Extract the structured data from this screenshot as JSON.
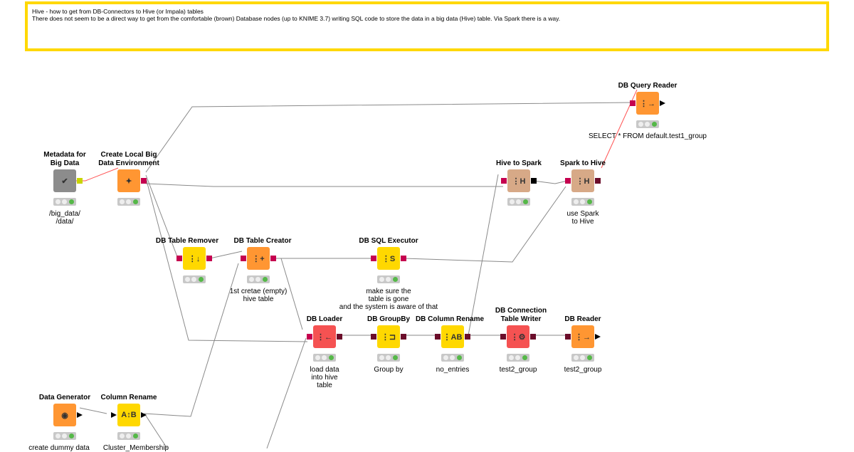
{
  "annotation": {
    "title": "Hive - how to get from DB-Connectors to Hive (or Impala) tables",
    "text": "There does not seem to be a direct way to get from the comfortable (brown) Database nodes (up to KNIME 3.7) writing SQL code to store the data in a big data (Hive) table. Via Spark there is a way."
  },
  "colors": {
    "annotation_border": "#ffd800",
    "orange": "#ff9632",
    "yellow": "#ffd800",
    "red": "#f55252",
    "tan": "#d7a987",
    "gray": "#8c8c8c",
    "db_port": "#6b0d2a",
    "ok_light": "#55b848"
  },
  "nodes": [
    {
      "name": "Metadata for\nBig Data",
      "desc": "/big_data/\n/data/",
      "color": "gray",
      "icon": "checkmark-icon",
      "glyph": "✔"
    },
    {
      "name": "Create Local Big\nData Environment",
      "desc": "",
      "color": "orange",
      "icon": "spark-star-icon",
      "glyph": "✦"
    },
    {
      "name": "DB Query Reader",
      "desc": "SELECT * FROM default.test1_group",
      "color": "orange",
      "icon": "db-read-icon",
      "glyph": "⋮→"
    },
    {
      "name": "Hive to Spark",
      "desc": "",
      "color": "tan",
      "icon": "hive-to-spark-icon",
      "glyph": "⋮H"
    },
    {
      "name": "Spark to Hive",
      "desc": "use Spark\nto Hive",
      "color": "tan",
      "icon": "spark-to-hive-icon",
      "glyph": "⋮H"
    },
    {
      "name": "DB Table Remover",
      "desc": "",
      "color": "yellow",
      "icon": "db-table-remove-icon",
      "glyph": "⋮↓"
    },
    {
      "name": "DB Table Creator",
      "desc": "1st cretae (empty)\nhive table",
      "color": "orange",
      "icon": "db-table-create-icon",
      "glyph": "⋮+"
    },
    {
      "name": "DB SQL Executor",
      "desc": "make sure the\ntable is gone\nand the system is aware of that",
      "color": "yellow",
      "icon": "db-sql-icon",
      "glyph": "⋮S"
    },
    {
      "name": "DB Loader",
      "desc": "load data\ninto hive\ntable",
      "color": "red",
      "icon": "db-loader-icon",
      "glyph": "⋮←"
    },
    {
      "name": "DB GroupBy",
      "desc": "Group by",
      "color": "yellow",
      "icon": "db-groupby-icon",
      "glyph": "⋮⊐"
    },
    {
      "name": "DB Column Rename",
      "desc": "no_entries",
      "color": "yellow",
      "icon": "db-column-rename-icon",
      "glyph": "⋮AB"
    },
    {
      "name": "DB Connection\nTable Writer",
      "desc": "test2_group",
      "color": "red",
      "icon": "db-writer-icon",
      "glyph": "⋮⚙"
    },
    {
      "name": "DB Reader",
      "desc": "test2_group",
      "color": "orange",
      "icon": "db-reader-icon",
      "glyph": "⋮→"
    },
    {
      "name": "Data Generator",
      "desc": "create dummy data",
      "color": "orange",
      "icon": "data-generator-icon",
      "glyph": "◉"
    },
    {
      "name": "Column Rename",
      "desc": "Cluster_Membership",
      "color": "yellow",
      "icon": "column-rename-icon",
      "glyph": "A↕B"
    }
  ]
}
